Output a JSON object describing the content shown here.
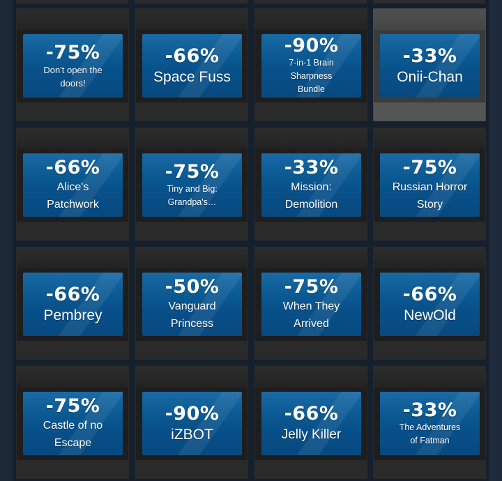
{
  "colors": {
    "page_bg": "#1b2838",
    "tile_bg": "#1e1e1e",
    "tile_hover_bg": "#3b3b3b",
    "banner_blue": "#0b5a93",
    "text": "#ffffff"
  },
  "tiles": [
    {
      "discount": "-75%",
      "name": "Don't open the doors!"
    },
    {
      "discount": "-66%",
      "name": "Space Fuss"
    },
    {
      "discount": "-90%",
      "name": "7-in-1 Brain Sharpness Bundle"
    },
    {
      "discount": "-33%",
      "name": "Onii-Chan"
    },
    {
      "discount": "-66%",
      "name": "Alice's Patchwork"
    },
    {
      "discount": "-75%",
      "name": "Tiny and Big: Grandpa's…"
    },
    {
      "discount": "-33%",
      "name": "Mission: Demolition"
    },
    {
      "discount": "-75%",
      "name": "Russian Horror Story"
    },
    {
      "discount": "-66%",
      "name": "Pembrey"
    },
    {
      "discount": "-50%",
      "name": "Vanguard Princess"
    },
    {
      "discount": "-75%",
      "name": "When They Arrived"
    },
    {
      "discount": "-66%",
      "name": "NewOld"
    },
    {
      "discount": "-75%",
      "name": "Castle of no Escape"
    },
    {
      "discount": "-90%",
      "name": "iZBOT"
    },
    {
      "discount": "-66%",
      "name": "Jelly Killer"
    },
    {
      "discount": "-33%",
      "name": "The Adventures of Fatman"
    }
  ]
}
